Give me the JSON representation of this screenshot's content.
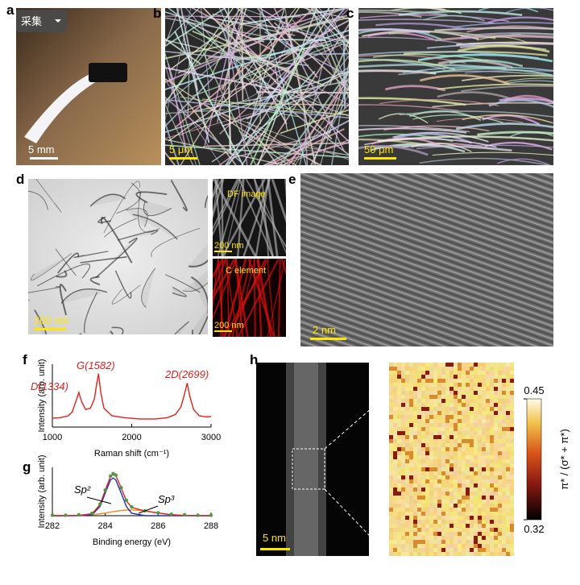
{
  "panels": {
    "a": {
      "label": "a",
      "button": "采集",
      "scale_bar": "5 mm"
    },
    "b": {
      "label": "b",
      "scale_bar": "5 μm"
    },
    "c": {
      "label": "c",
      "scale_bar": "50 μm"
    },
    "d": {
      "label": "d",
      "scale_bar": "200 nm",
      "df_title": "DF image",
      "df_scale_bar": "200 nm",
      "c_title": "C element",
      "c_scale_bar": "200 nm"
    },
    "e": {
      "label": "e",
      "scale_bar": "2 nm"
    },
    "f": {
      "label": "f"
    },
    "g": {
      "label": "g"
    },
    "h": {
      "label": "h",
      "scale_bar": "5 nm",
      "colorbar": {
        "label": "π* / (σ* + π*)",
        "clim": [
          0.32,
          0.45
        ],
        "ticks": [
          0.32,
          0.45
        ]
      }
    }
  },
  "chart_data": [
    {
      "type": "line",
      "xlabel": "Raman shift (cm⁻¹)",
      "ylabel": "Intensity (arb. unit)",
      "xlim": [
        1000,
        3000
      ],
      "xticks": [
        1000,
        2000,
        3000
      ],
      "ylim": [
        0,
        1
      ],
      "x": [
        1000,
        1100,
        1200,
        1250,
        1300,
        1334,
        1370,
        1420,
        1480,
        1530,
        1560,
        1582,
        1610,
        1650,
        1750,
        1900,
        2100,
        2300,
        2450,
        2550,
        2620,
        2660,
        2699,
        2730,
        2780,
        2850,
        2950,
        3000
      ],
      "series": [
        {
          "color": "#e0201b",
          "values": [
            0.14,
            0.15,
            0.18,
            0.24,
            0.42,
            0.55,
            0.4,
            0.28,
            0.3,
            0.45,
            0.7,
            0.85,
            0.55,
            0.3,
            0.18,
            0.15,
            0.13,
            0.13,
            0.15,
            0.2,
            0.32,
            0.5,
            0.7,
            0.5,
            0.28,
            0.18,
            0.16,
            0.17
          ]
        }
      ],
      "annotations": [
        "D(1334)",
        "G(1582)",
        "2D(2699)"
      ],
      "annotation_color": "#e0201b"
    },
    {
      "type": "line",
      "xlabel": "Binding energy (eV)",
      "ylabel": "Intensity (arb. unit)",
      "xlim": [
        282,
        288
      ],
      "xticks": [
        282,
        284,
        286,
        288
      ],
      "ylim": [
        0,
        1
      ],
      "x": [
        282,
        282.5,
        283,
        283.5,
        283.8,
        284,
        284.2,
        284.3,
        284.4,
        284.6,
        284.8,
        285,
        285.5,
        286,
        286.5,
        287,
        287.5,
        288
      ],
      "series": [
        {
          "color": "#f08a1c",
          "values": [
            0,
            0.001,
            0.005,
            0.02,
            0.039,
            0.055,
            0.073,
            0.081,
            0.091,
            0.106,
            0.116,
            0.12,
            0.099,
            0.055,
            0.02,
            0.005,
            0.001,
            0
          ]
        },
        {
          "color": "#1f2fbf",
          "values": [
            0,
            0,
            0,
            0.02,
            0.19,
            0.47,
            0.74,
            0.78,
            0.74,
            0.47,
            0.19,
            0.05,
            0,
            0,
            0,
            0,
            0,
            0
          ]
        },
        {
          "color": "#e0201b",
          "values": [
            0,
            0.001,
            0.005,
            0.04,
            0.229,
            0.525,
            0.813,
            0.861,
            0.831,
            0.576,
            0.306,
            0.17,
            0.099,
            0.055,
            0.02,
            0.005,
            0.001,
            0
          ]
        },
        {
          "color": "#4f9a3a",
          "mode": "markers",
          "values": [
            0.01,
            0.01,
            0.02,
            0.05,
            0.24,
            0.53,
            0.82,
            0.87,
            0.84,
            0.58,
            0.32,
            0.18,
            0.1,
            0.06,
            0.03,
            0.02,
            0.01,
            0.01
          ]
        }
      ],
      "annotations": [
        "Sp²",
        "Sp³"
      ],
      "annotation_color": "#000000"
    }
  ]
}
